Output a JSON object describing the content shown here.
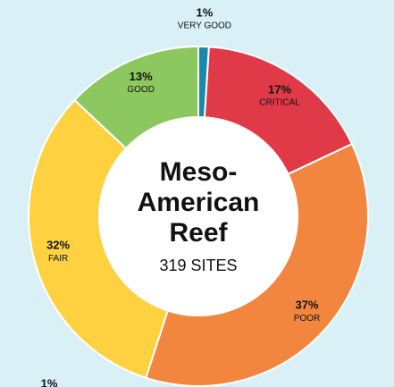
{
  "chart_data": {
    "type": "donut",
    "title": [
      "Meso-",
      "American",
      "Reef"
    ],
    "subtitle": "319 SITES",
    "categories": [
      "VERY GOOD",
      "CRITICAL",
      "POOR",
      "FAIR",
      "GOOD"
    ],
    "values": [
      1,
      17,
      37,
      32,
      13
    ],
    "value_labels": [
      "1%",
      "17%",
      "37%",
      "32%",
      "13%"
    ],
    "colors": [
      "#1689ad",
      "#e03a48",
      "#f2863f",
      "#fdd13f",
      "#8cc75f"
    ],
    "annotations": [
      "1%"
    ]
  }
}
